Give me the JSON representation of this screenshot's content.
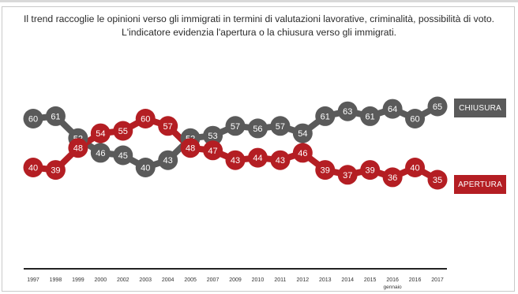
{
  "title_line1": "Il trend raccoglie le opinioni verso gli immigrati in termini di valutazioni lavorative, criminalità, possibilità di voto.",
  "title_line2": "L'indicatore evidenzia l'apertura o la chiusura verso gli immigrati.",
  "legend": {
    "closure": "CHIUSURA",
    "opening": "APERTURA"
  },
  "colors": {
    "closure": "#5a5a5a",
    "opening": "#b41e23",
    "axis": "#222222"
  },
  "chart_data": {
    "type": "line",
    "title": "Il trend raccoglie le opinioni verso gli immigrati in termini di valutazioni lavorative, criminalità, possibilità di voto. L'indicatore evidenzia l'apertura o la chiusura verso gli immigrati.",
    "categories": [
      "1997",
      "1998",
      "1999",
      "2000",
      "2002",
      "2003",
      "2004",
      "2005",
      "2007",
      "2009",
      "2010",
      "2011",
      "2012",
      "2013",
      "2014",
      "2015",
      "2016 gennaio",
      "2016",
      "2017"
    ],
    "tick_labels": [
      "1997",
      "1998",
      "1999",
      "2000",
      "2002",
      "2003",
      "2004",
      "2005",
      "2007",
      "2009",
      "2010",
      "2011",
      "2012",
      "2013",
      "2014",
      "2015",
      "2016",
      "2016",
      "2017"
    ],
    "tick_sublabels": [
      "",
      "",
      "",
      "",
      "",
      "",
      "",
      "",
      "",
      "",
      "",
      "",
      "",
      "",
      "",
      "",
      "gennaio",
      "",
      ""
    ],
    "series": [
      {
        "name": "CHIUSURA",
        "values": [
          60,
          61,
          52,
          46,
          45,
          40,
          43,
          52,
          53,
          57,
          56,
          57,
          54,
          61,
          63,
          61,
          64,
          60,
          65
        ]
      },
      {
        "name": "APERTURA",
        "values": [
          40,
          39,
          48,
          54,
          55,
          60,
          57,
          48,
          47,
          43,
          44,
          43,
          46,
          39,
          37,
          39,
          36,
          40,
          35
        ]
      }
    ],
    "point_labels": {
      "CHIUSURA": [
        "60",
        "61",
        "52",
        "46",
        "45",
        "40",
        "43",
        "52",
        "53",
        "57",
        "56",
        "57",
        "54",
        "61",
        "63",
        "61",
        "64",
        "60",
        "65"
      ],
      "APERTURA": [
        "40",
        "39",
        "48",
        "54",
        "55",
        "60",
        "57",
        "48",
        "47",
        "43",
        "44",
        "43",
        "46",
        "39",
        "37",
        "39",
        "36",
        "40",
        "35"
      ]
    },
    "xlabel": "",
    "ylabel": "",
    "grid": false,
    "legend_placement": "right"
  }
}
